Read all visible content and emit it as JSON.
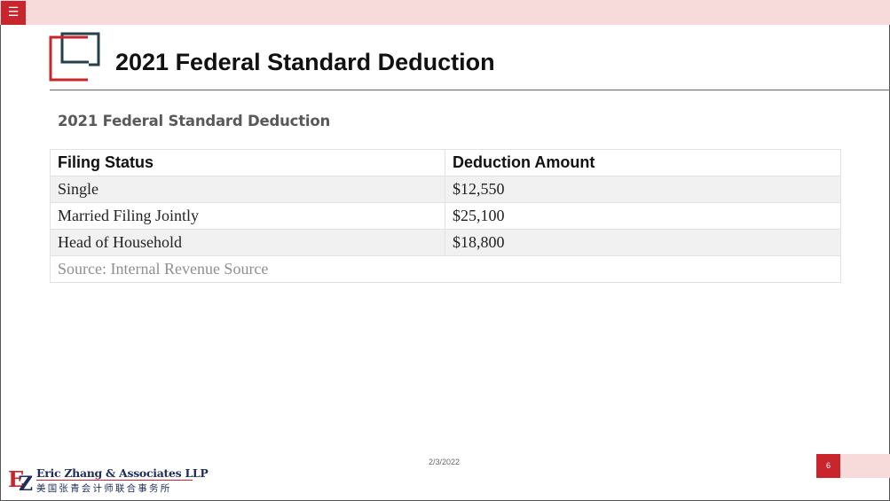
{
  "menu": {
    "icon": "hamburger-menu-icon",
    "glyph": "☰"
  },
  "header": {
    "title": "2021 Federal Standard Deduction"
  },
  "section": {
    "subtitle": "2021 Federal Standard Deduction"
  },
  "table": {
    "headers": [
      "Filing Status",
      "Deduction Amount"
    ],
    "rows": [
      [
        "Single",
        "$12,550"
      ],
      [
        "Married Filing Jointly",
        "$25,100"
      ],
      [
        "Head of Household",
        "$18,800"
      ]
    ],
    "source": "Source: Internal Revenue Source"
  },
  "footer": {
    "date": "2/3/2022",
    "page_number": "6",
    "firm_name": "Eric Zhang & Associates LLP",
    "firm_name_cn": "美国张青会计师联合事务所",
    "logo_letters": "EZ"
  },
  "colors": {
    "brand_red": "#c9252c",
    "brand_navy": "#1f2d5a",
    "logo_teal": "#24404a",
    "bar_pink": "#f7dada"
  }
}
